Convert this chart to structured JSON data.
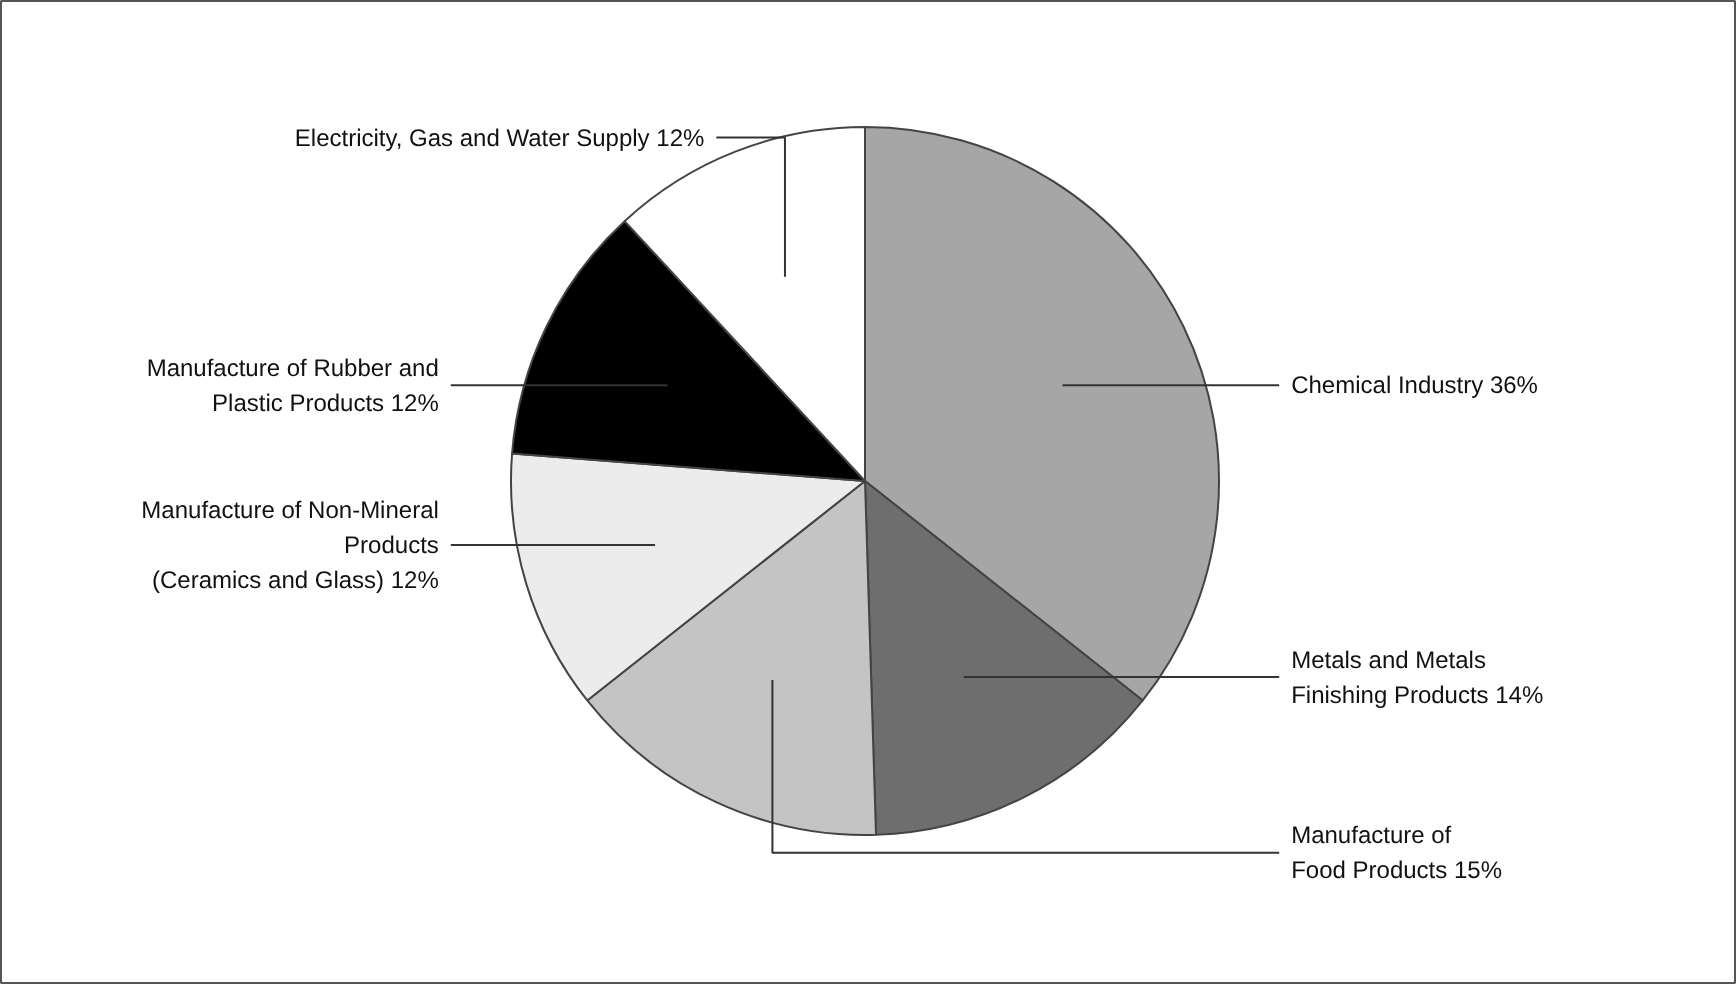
{
  "chart_data": {
    "type": "pie",
    "categories": [
      "Chemical Industry",
      "Metals and Metals\nFinishing Products",
      "Manufacture of\nFood Products",
      "Manufacture of Non-Mineral\nProducts\n(Ceramics and Glass)",
      "Manufacture of Rubber and\nPlastic Products",
      "Electricity, Gas and Water Supply"
    ],
    "values": [
      36,
      14,
      15,
      12,
      12,
      12
    ],
    "value_labels": [
      "36%",
      "14%",
      "15%",
      "12%",
      "12%",
      "12%"
    ],
    "colors": [
      "#a6a6a6",
      "#6e6e6e",
      "#c4c4c4",
      "#ececec",
      "#000000",
      "#ffffff"
    ]
  }
}
